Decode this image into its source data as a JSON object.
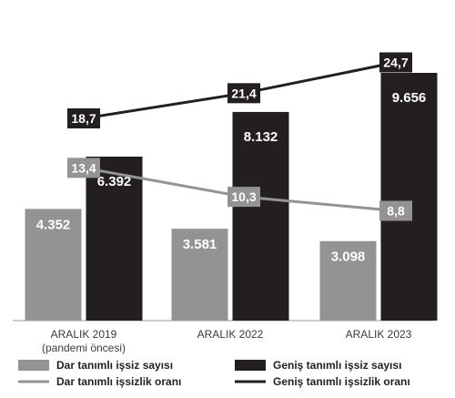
{
  "chart_data": {
    "type": "bar",
    "categories": [
      [
        "ARALIK 2019",
        "(pandemi öncesi)"
      ],
      [
        "ARALIK 2022"
      ],
      [
        "ARALIK 2023"
      ]
    ],
    "series": [
      {
        "name": "Dar tanımlı işsiz sayısı",
        "kind": "bar",
        "color": "#939393",
        "values": [
          4352,
          3581,
          3098
        ],
        "labels": [
          "4.352",
          "3.581",
          "3.098"
        ]
      },
      {
        "name": "Geniş tanımlı işsiz sayısı",
        "kind": "bar",
        "color": "#231f20",
        "values": [
          6392,
          8132,
          9656
        ],
        "labels": [
          "6.392",
          "8.132",
          "9.656"
        ]
      },
      {
        "name": "Dar tanımlı işsizlik oranı",
        "kind": "line",
        "color": "#939393",
        "values": [
          13.4,
          10.3,
          8.8
        ],
        "labels": [
          "13,4",
          "10,3",
          "8,8"
        ]
      },
      {
        "name": "Geniş tanımlı işsizlik oranı",
        "kind": "line",
        "color": "#231f20",
        "values": [
          18.7,
          21.4,
          24.7
        ],
        "labels": [
          "18,7",
          "21,4",
          "24,7"
        ]
      }
    ],
    "legend_position": "bottom"
  }
}
